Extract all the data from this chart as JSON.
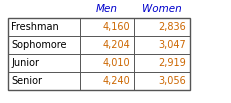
{
  "col_headers": [
    "Men",
    "Women"
  ],
  "row_labels": [
    "Freshman",
    "Sophomore",
    "Junior",
    "Senior"
  ],
  "values": [
    [
      "4,160",
      "2,836"
    ],
    [
      "4,204",
      "3,047"
    ],
    [
      "4,010",
      "2,919"
    ],
    [
      "4,240",
      "3,056"
    ]
  ],
  "header_color": "#0000cc",
  "cell_text_color": "#cc6600",
  "row_label_color": "#000000",
  "bg_color": "#ffffff",
  "border_color": "#555555",
  "font_size": 7.0,
  "header_font_size": 7.5
}
